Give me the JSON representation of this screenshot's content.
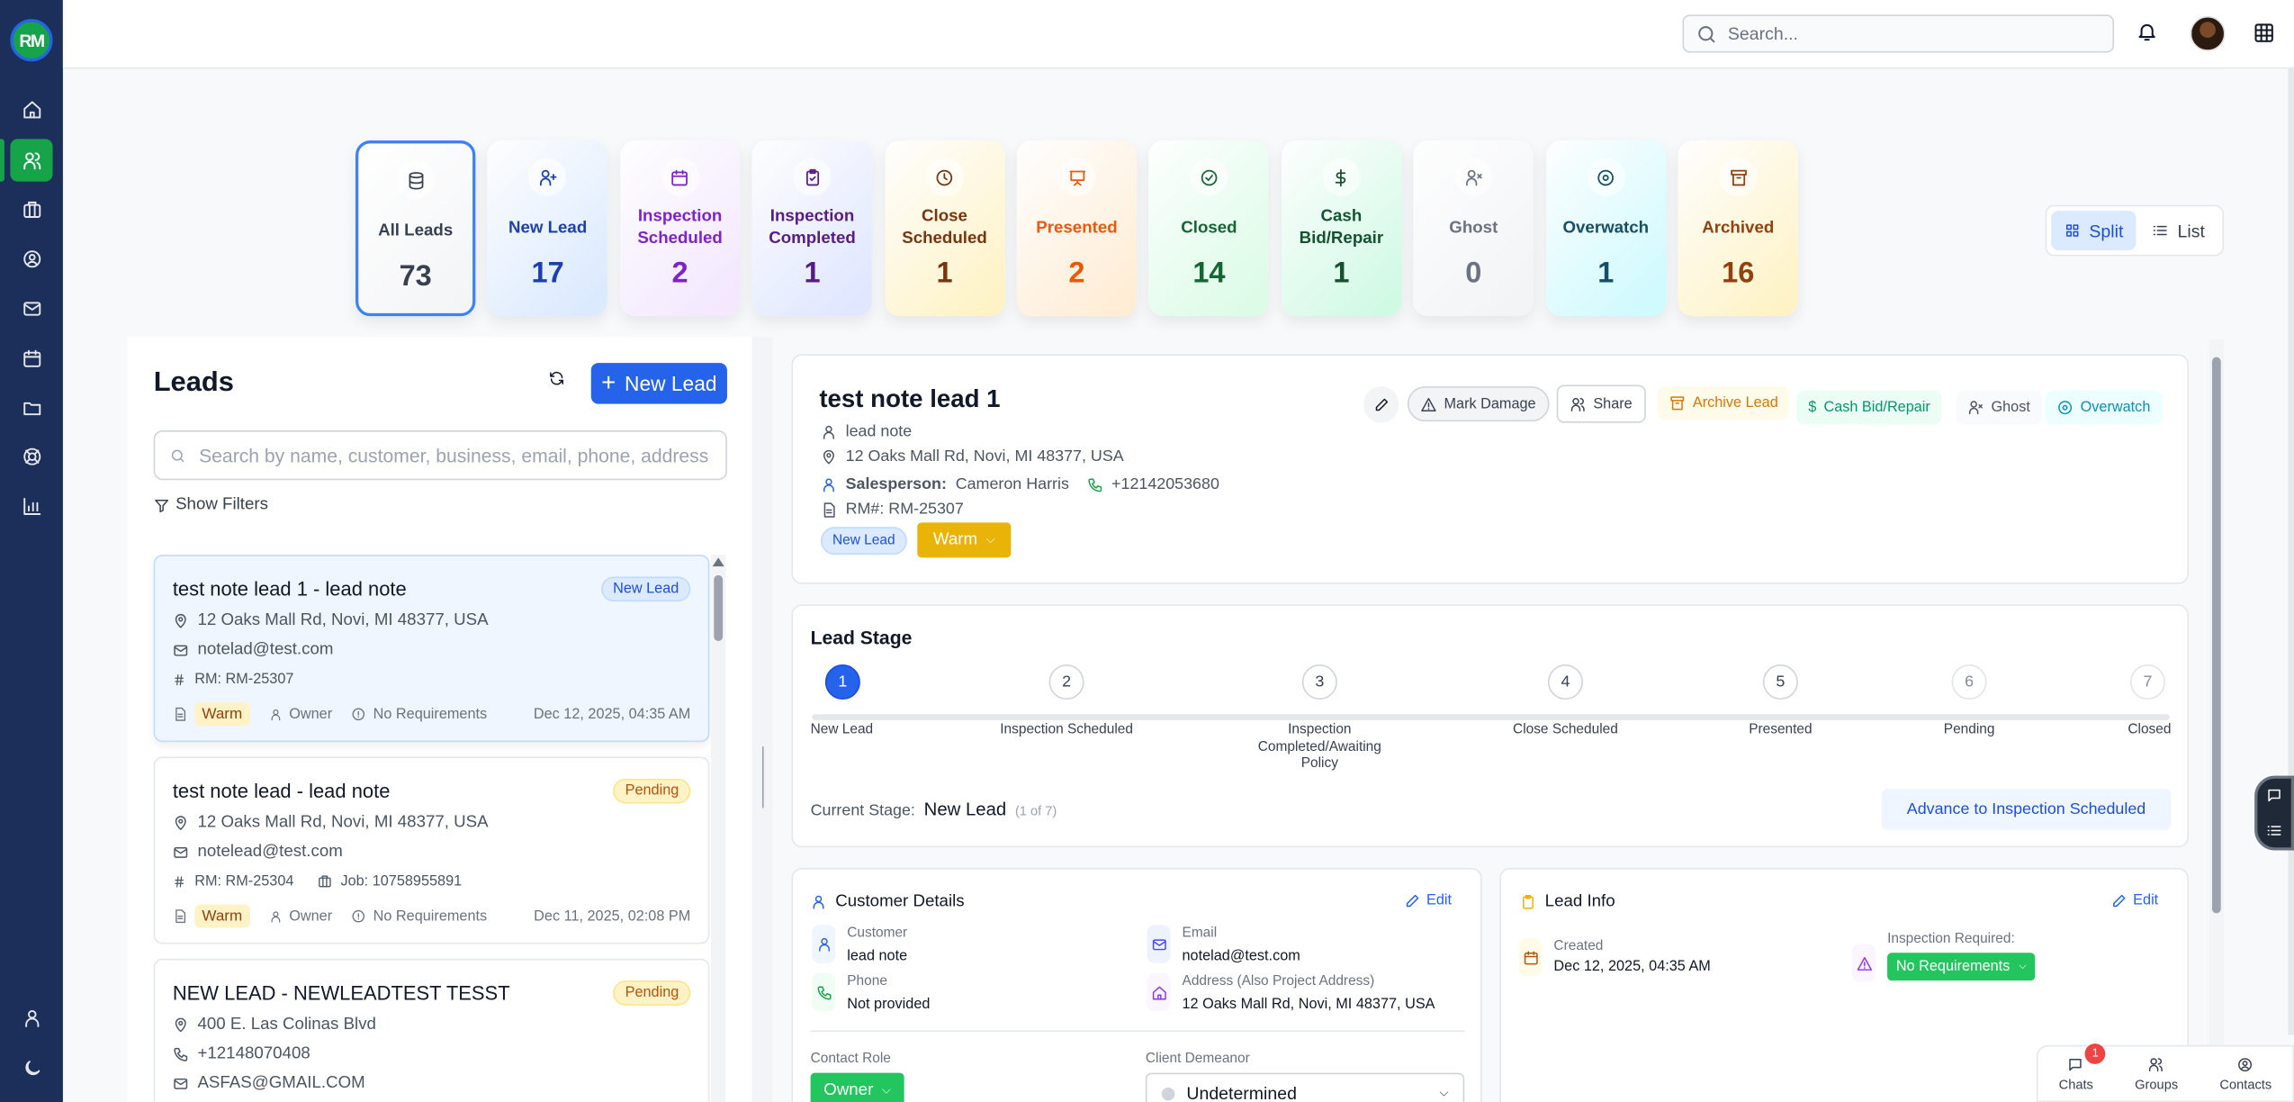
{
  "app": {
    "logo_text": "RM"
  },
  "sidebar": {
    "items": [
      {
        "icon": "home-icon",
        "label": "home"
      },
      {
        "icon": "users-icon",
        "label": "leads",
        "active": true
      },
      {
        "icon": "briefcase-icon",
        "label": "jobs"
      },
      {
        "icon": "user-circle-icon",
        "label": "contacts"
      },
      {
        "icon": "mail-icon",
        "label": "mail"
      },
      {
        "icon": "calendar-icon",
        "label": "calendar"
      },
      {
        "icon": "folder-icon",
        "label": "files"
      },
      {
        "icon": "lifebuoy-icon",
        "label": "support"
      },
      {
        "icon": "chart-icon",
        "label": "reports"
      }
    ],
    "bottom": [
      {
        "icon": "user-icon"
      },
      {
        "icon": "moon-icon"
      }
    ]
  },
  "topbar": {
    "search_placeholder": "Search...",
    "icons": [
      "bell-icon",
      "avatar",
      "apps-grid-icon"
    ]
  },
  "stats": [
    {
      "label": "All Leads",
      "count": "73",
      "icon": "database-icon",
      "color": "#374151",
      "bg": "#ffffff",
      "selected": true
    },
    {
      "label": "New Lead",
      "count": "17",
      "icon": "user-plus-icon",
      "color": "#1e40af",
      "bg": "#dbeafe"
    },
    {
      "label": "Inspection Scheduled",
      "count": "2",
      "icon": "calendar-icon",
      "color": "#7e22ce",
      "bg": "#f3e8ff"
    },
    {
      "label": "Inspection Completed",
      "count": "1",
      "icon": "clipboard-check-icon",
      "color": "#581c87",
      "bg": "#e0e7ff"
    },
    {
      "label": "Close Scheduled",
      "count": "1",
      "icon": "clock-icon",
      "color": "#78350f",
      "bg": "#fef3c7"
    },
    {
      "label": "Presented",
      "count": "2",
      "icon": "presentation-icon",
      "color": "#ea580c",
      "bg": "#ffedd5"
    },
    {
      "label": "Closed",
      "count": "14",
      "icon": "check-circle-icon",
      "color": "#166534",
      "bg": "#dcfce7"
    },
    {
      "label": "Cash Bid/Repair",
      "count": "1",
      "icon": "dollar-icon",
      "color": "#14532d",
      "bg": "#d1fae5"
    },
    {
      "label": "Ghost",
      "count": "0",
      "icon": "user-x-icon",
      "color": "#6b7280",
      "bg": "#f3f4f6"
    },
    {
      "label": "Overwatch",
      "count": "1",
      "icon": "eye-icon",
      "color": "#164e63",
      "bg": "#cffafe"
    },
    {
      "label": "Archived",
      "count": "16",
      "icon": "archive-icon",
      "color": "#92400e",
      "bg": "#fef3c7"
    }
  ],
  "view_toggle": {
    "split": "Split",
    "list": "List",
    "active": "Split"
  },
  "leads_panel": {
    "title": "Leads",
    "new_lead": "New Lead",
    "search_placeholder": "Search by name, customer, business, email, phone, address",
    "show_filters": "Show Filters",
    "items": [
      {
        "title": "test note lead 1 - lead note",
        "status": "New Lead",
        "address": "12 Oaks Mall Rd, Novi, MI 48377, USA",
        "email": "notelad@test.com",
        "rm": "RM: RM-25307",
        "temperature": "Warm",
        "role": "Owner",
        "requirements": "No Requirements",
        "date": "Dec 12, 2025, 04:35 AM",
        "selected": true
      },
      {
        "title": "test note lead - lead note",
        "status": "Pending",
        "address": "12 Oaks Mall Rd, Novi, MI 48377, USA",
        "email": "notelead@test.com",
        "rm": "RM: RM-25304",
        "job": "Job: 10758955891",
        "temperature": "Warm",
        "role": "Owner",
        "requirements": "No Requirements",
        "date": "Dec 11, 2025, 02:08 PM"
      },
      {
        "title": "NEW LEAD - NEWLEADTEST TESST",
        "status": "Pending",
        "address": "400 E. Las Colinas Blvd",
        "phone": "+12148070408",
        "email": "ASFAS@GMAIL.COM"
      }
    ]
  },
  "detail": {
    "title": "test note lead 1",
    "customer": "lead note",
    "address": "12 Oaks Mall Rd, Novi, MI 48377, USA",
    "salesperson_label": "Salesperson:",
    "salesperson": "Cameron Harris",
    "phone": "+12142053680",
    "rm": "RM#: RM-25307",
    "status_badge": "New Lead",
    "temperature": "Warm",
    "actions": {
      "mark_damage": "Mark Damage",
      "share": "Share",
      "archive": "Archive Lead",
      "cash_bid": "Cash Bid/Repair",
      "ghost": "Ghost",
      "overwatch": "Overwatch"
    }
  },
  "lead_stage": {
    "title": "Lead Stage",
    "steps": [
      {
        "n": "1",
        "label": "New Lead"
      },
      {
        "n": "2",
        "label": "Inspection Scheduled"
      },
      {
        "n": "3",
        "label": "Inspection Completed/Awaiting Policy"
      },
      {
        "n": "4",
        "label": "Close Scheduled"
      },
      {
        "n": "5",
        "label": "Presented"
      },
      {
        "n": "6",
        "label": "Pending"
      },
      {
        "n": "7",
        "label": "Closed"
      }
    ],
    "current_label": "Current Stage:",
    "current": "New Lead",
    "current_of": "(1 of 7)",
    "advance": "Advance to Inspection Scheduled"
  },
  "customer_details": {
    "title": "Customer Details",
    "edit": "Edit",
    "customer_label": "Customer",
    "customer": "lead note",
    "email_label": "Email",
    "email": "notelad@test.com",
    "phone_label": "Phone",
    "phone": "Not provided",
    "address_label": "Address (Also Project Address)",
    "address": "12 Oaks Mall Rd, Novi, MI 48377, USA",
    "contact_role_label": "Contact Role",
    "contact_role": "Owner",
    "demeanor_label": "Client Demeanor",
    "demeanor": "Undetermined"
  },
  "lead_info": {
    "title": "Lead Info",
    "edit": "Edit",
    "created_label": "Created",
    "created": "Dec 12, 2025, 04:35 AM",
    "inspection_label": "Inspection Required:",
    "inspection": "No Requirements"
  },
  "dock": {
    "chats": "Chats",
    "chats_badge": "1",
    "groups": "Groups",
    "contacts": "Contacts"
  }
}
